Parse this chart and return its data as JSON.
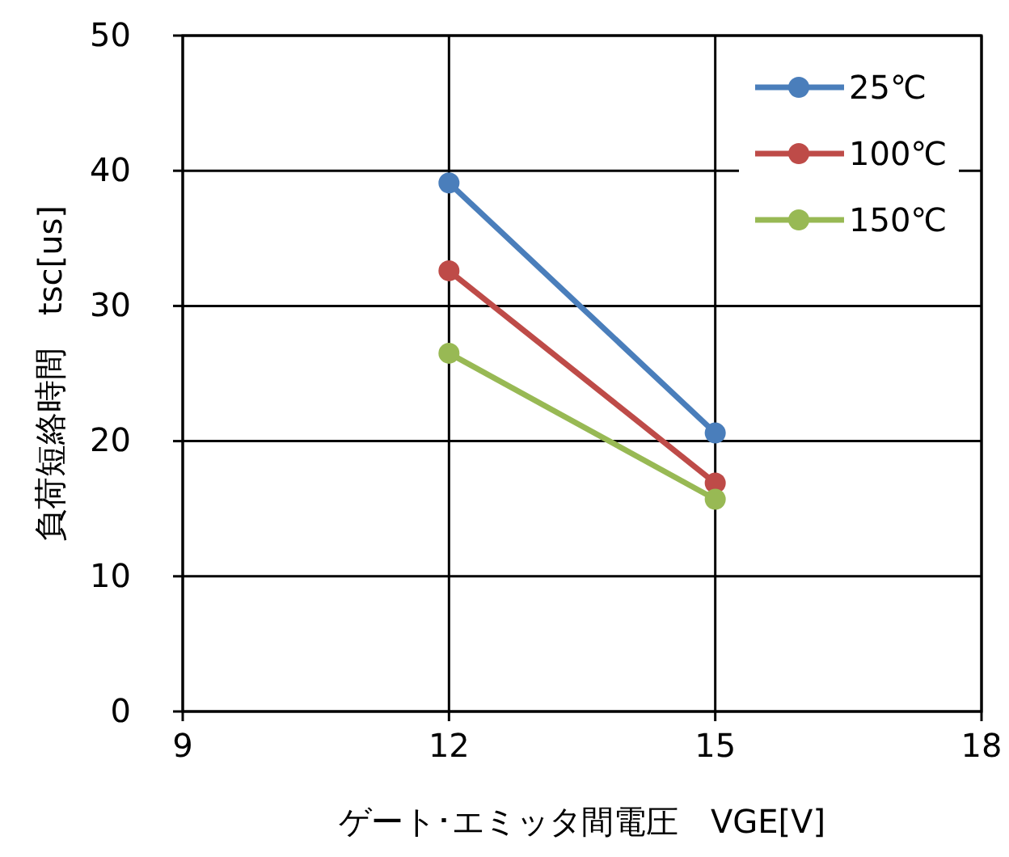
{
  "chart_data": {
    "type": "line",
    "xlabel": "ゲート･エミッタ間電圧　VGE[V]",
    "ylabel": "負荷短絡時間　tsc[us]",
    "x": [
      12,
      15
    ],
    "series": [
      {
        "name": "25℃",
        "color": "#4a7ebb",
        "values": [
          39.1,
          20.6
        ]
      },
      {
        "name": "100℃",
        "color": "#be4b48",
        "values": [
          32.6,
          16.9
        ]
      },
      {
        "name": "150℃",
        "color": "#98b954",
        "values": [
          26.5,
          15.7
        ]
      }
    ],
    "xlim": [
      9,
      18
    ],
    "xticks": [
      9,
      12,
      15,
      18
    ],
    "ylim": [
      0,
      50
    ],
    "yticks": [
      0,
      10,
      20,
      30,
      40,
      50
    ],
    "grid": true,
    "legend": "top right",
    "marker": "circle",
    "line_style": "solid"
  }
}
